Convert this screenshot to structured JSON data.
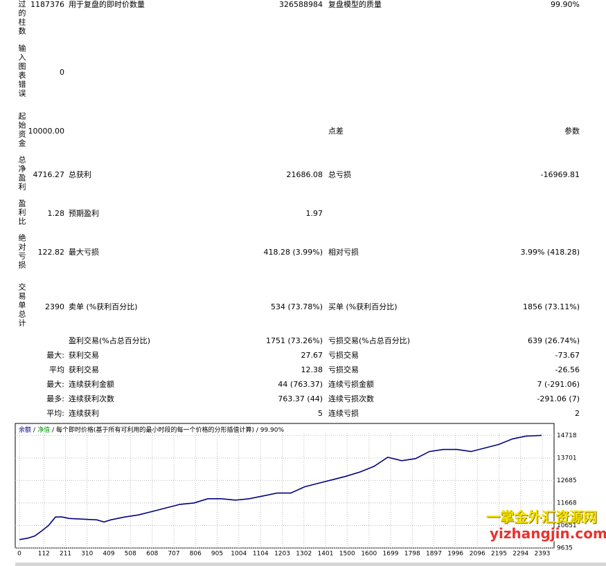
{
  "report": {
    "rows": [
      {
        "side": "过的柱数",
        "col1": "1187376",
        "label2": "用于复盘的即时价数量",
        "col2": "326588984",
        "label3": "复盘模型的质量",
        "col3": "99.90%"
      },
      {
        "side": "输入图表错误",
        "col1": "0"
      },
      {
        "side": "起始资金",
        "col1": "10000.00",
        "label3": "点差",
        "col3": "参数"
      },
      {
        "side": "总净盈利",
        "col1": "4716.27",
        "label2": "总获利",
        "col2": "21686.08",
        "label3": "总亏损",
        "col3": "-16969.81"
      },
      {
        "side": "盈利比",
        "col1": "1.28",
        "label2": "预期盈利",
        "col2": "1.97"
      },
      {
        "side": "绝对亏损",
        "col1": "122.82",
        "label2": "最大亏损",
        "col2": "418.28 (3.99%)",
        "label3": "相对亏损",
        "col3": "3.99% (418.28)"
      },
      {
        "side": "交易单总计",
        "col1": "2390",
        "label2": "卖单 (%获利百分比)",
        "col2": "534 (73.78%)",
        "label3": "买单 (%获利百分比)",
        "col3": "1856 (73.11%)"
      },
      {
        "label2": "盈利交易(%占总百分比)",
        "col2": "1751 (73.26%)",
        "label3": "亏损交易(%占总百分比)",
        "col3": "639 (26.74%)"
      },
      {
        "col1": "最大:",
        "label2": "获利交易",
        "col2": "27.67",
        "label3": "亏损交易",
        "col3": "-73.67"
      },
      {
        "col1": "平均",
        "label2": "获利交易",
        "col2": "12.38",
        "label3": "亏损交易",
        "col3": "-26.56"
      },
      {
        "col1": "最大:",
        "label2": "连续获利金额",
        "col2": "44 (763.37)",
        "label3": "连续亏损金额",
        "col3": "7 (-291.06)"
      },
      {
        "col1": "最多:",
        "label2": "连续获利次数",
        "col2": "763.37 (44)",
        "label3": "连续亏损次数",
        "col3": "-291.06 (7)"
      },
      {
        "col1": "平均:",
        "label2": "连续获利",
        "col2": "5",
        "label3": "连续亏损",
        "col3": "2"
      }
    ]
  },
  "chart_data": {
    "type": "line",
    "title": "/ 每个即时价格(基于所有可利用的最小时段的每一个价格的分形插值计算) / 99.90%",
    "separator": "/",
    "equity_label": "净值",
    "equity_color": "#00a000",
    "x": [
      0,
      38,
      70,
      101,
      133,
      165,
      197,
      228,
      292,
      355,
      387,
      418,
      482,
      545,
      609,
      672,
      735,
      799,
      862,
      926,
      989,
      1052,
      1116,
      1179,
      1242,
      1306,
      1369,
      1433,
      1496,
      1559,
      1623,
      1686,
      1750,
      1813,
      1876,
      1940,
      2003,
      2067,
      2130,
      2193,
      2257,
      2320,
      2390
    ],
    "series": [
      {
        "name": "余额",
        "color": "#000080",
        "values": [
          10016,
          10080,
          10175,
          10400,
          10650,
          11033,
          11033,
          10970,
          10938,
          10906,
          10811,
          10906,
          11033,
          11128,
          11288,
          11447,
          11606,
          11669,
          11860,
          11860,
          11796,
          11860,
          11987,
          12114,
          12114,
          12400,
          12559,
          12718,
          12877,
          13067,
          13322,
          13735,
          13576,
          13671,
          13989,
          14084,
          14084,
          13989,
          14148,
          14307,
          14561,
          14688,
          14716.27
        ]
      }
    ],
    "xlim": [
      -19,
      2447
    ],
    "ylim": [
      9635,
      15258
    ],
    "xticks": [
      0,
      112,
      211,
      310,
      409,
      508,
      608,
      707,
      806,
      905,
      1004,
      1104,
      1203,
      1302,
      1401,
      1500,
      1600,
      1699,
      1798,
      1897,
      1996,
      2096,
      2195,
      2294,
      2393
    ],
    "yticks": [
      9635,
      10651,
      11668,
      12685,
      13701,
      14718
    ],
    "grid": true
  },
  "watermark": {
    "line1": "一掌金外汇资源网",
    "line2": "yizhangjin.com"
  }
}
